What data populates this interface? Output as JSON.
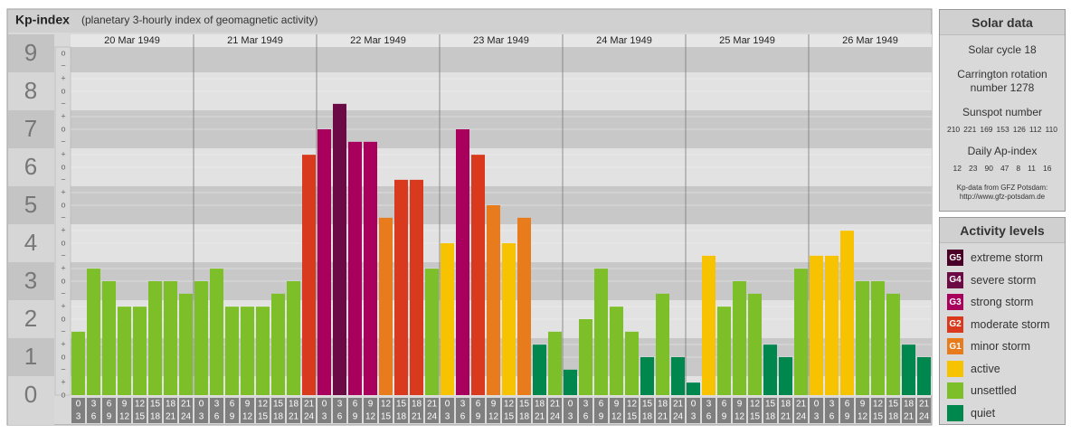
{
  "chart_data": {
    "type": "bar",
    "title": "Kp-index",
    "subtitle": "(planetary 3-hourly index of geomagnetic activity)",
    "days": [
      "20 Mar 1949",
      "21 Mar 1949",
      "22 Mar 1949",
      "23 Mar 1949",
      "24 Mar 1949",
      "25 Mar 1949",
      "26 Mar 1949"
    ],
    "hours": [
      {
        "from": 0,
        "to": 3
      },
      {
        "from": 3,
        "to": 6
      },
      {
        "from": 6,
        "to": 9
      },
      {
        "from": 9,
        "to": 12
      },
      {
        "from": 12,
        "to": 15
      },
      {
        "from": 15,
        "to": 18
      },
      {
        "from": 18,
        "to": 21
      },
      {
        "from": 21,
        "to": 24
      }
    ],
    "ylim": [
      0,
      9
    ],
    "yticks": [
      0,
      1,
      2,
      3,
      4,
      5,
      6,
      7,
      8,
      9
    ],
    "yminor": [
      "o",
      "+",
      "−"
    ],
    "grid": true,
    "values": [
      1.67,
      3.33,
      3,
      2.33,
      2.33,
      3,
      3,
      2.67,
      3,
      3.33,
      2.33,
      2.33,
      2.33,
      2.67,
      3,
      6.33,
      7,
      7.67,
      6.67,
      6.67,
      4.67,
      5.67,
      5.67,
      3.33,
      4,
      7,
      6.33,
      5,
      4,
      4.67,
      1.33,
      1.67,
      0.67,
      2,
      3.33,
      2.33,
      1.67,
      1,
      2.67,
      1,
      0.33,
      3.67,
      2.33,
      3,
      2.67,
      1.33,
      1,
      3.33,
      3.67,
      3.67,
      4.33,
      3,
      3,
      2.67,
      1.33,
      1
    ],
    "colors": [
      "#7cbf28",
      "#7cbf28",
      "#7cbf28",
      "#7cbf28",
      "#7cbf28",
      "#7cbf28",
      "#7cbf28",
      "#7cbf28",
      "#7cbf28",
      "#7cbf28",
      "#7cbf28",
      "#7cbf28",
      "#7cbf28",
      "#7cbf28",
      "#7cbf28",
      "#d93a1e",
      "#a8005c",
      "#6b0a45",
      "#a8005c",
      "#a8005c",
      "#e87b1c",
      "#d93a1e",
      "#d93a1e",
      "#7cbf28",
      "#f7c300",
      "#a8005c",
      "#d93a1e",
      "#e87b1c",
      "#f7c300",
      "#e87b1c",
      "#00874d",
      "#7cbf28",
      "#00874d",
      "#7cbf28",
      "#7cbf28",
      "#7cbf28",
      "#7cbf28",
      "#00874d",
      "#7cbf28",
      "#00874d",
      "#00874d",
      "#f7c300",
      "#7cbf28",
      "#7cbf28",
      "#7cbf28",
      "#00874d",
      "#00874d",
      "#7cbf28",
      "#f7c300",
      "#f7c300",
      "#f7c300",
      "#7cbf28",
      "#7cbf28",
      "#7cbf28",
      "#00874d",
      "#00874d"
    ]
  },
  "solar_data": {
    "title": "Solar data",
    "cycle": "Solar cycle 18",
    "carrington": "Carrington rotation number 1278",
    "sunspot_title": "Sunspot number",
    "sunspot": [
      210,
      221,
      169,
      153,
      126,
      112,
      110
    ],
    "ap_title": "Daily Ap-index",
    "ap": [
      12,
      23,
      90,
      47,
      8,
      11,
      16
    ],
    "source": "Kp-data from GFZ Potsdam:",
    "url": "http://www.gfz-potsdam.de"
  },
  "activity_levels": {
    "title": "Activity levels",
    "items": [
      {
        "code": "G5",
        "label": "extreme storm",
        "color": "#4a0027"
      },
      {
        "code": "G4",
        "label": "severe storm",
        "color": "#6b0a45"
      },
      {
        "code": "G3",
        "label": "strong storm",
        "color": "#a8005c"
      },
      {
        "code": "G2",
        "label": "moderate storm",
        "color": "#d93a1e"
      },
      {
        "code": "G1",
        "label": "minor storm",
        "color": "#e87b1c"
      },
      {
        "label": "active",
        "color": "#f7c300"
      },
      {
        "label": "unsettled",
        "color": "#7cbf28"
      },
      {
        "label": "quiet",
        "color": "#00874d"
      }
    ]
  }
}
